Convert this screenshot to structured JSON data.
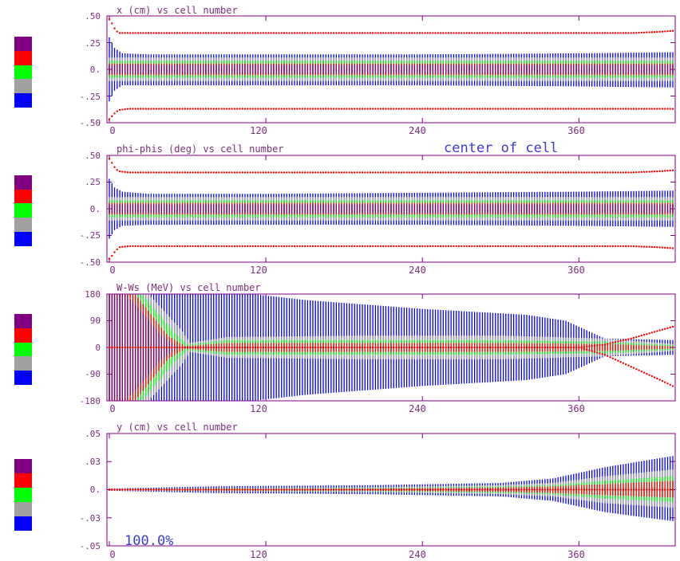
{
  "colors": {
    "frame": "#800080",
    "label": "#7a2f7a",
    "scale": [
      "#800080",
      "#ff0000",
      "#00ff00",
      "#a0a0a0",
      "#0000ff"
    ],
    "envelope": "#ff0000",
    "annotation": "#3b3bd0"
  },
  "annotations": {
    "center": "center of cell",
    "percent": "100.0%"
  },
  "chart_data": [
    {
      "type": "area",
      "title": "x (cm) vs cell number",
      "x_range": [
        0,
        432
      ],
      "x_ticks": [
        "0",
        "120",
        "240",
        "360"
      ],
      "x_tick_values": [
        0,
        120,
        240,
        360
      ],
      "y_range": [
        -0.5,
        0.5
      ],
      "y_ticks": [
        ".50",
        ".25",
        "0.",
        "-.25",
        "-.50"
      ],
      "y_tick_values": [
        0.5,
        0.25,
        0,
        -0.25,
        -0.5
      ],
      "series": [
        {
          "color_index": 4,
          "x": [
            0,
            4,
            10,
            30,
            120,
            240,
            360,
            432
          ],
          "upper": [
            0.3,
            0.2,
            0.15,
            0.14,
            0.14,
            0.14,
            0.15,
            0.16
          ],
          "lower": [
            -0.3,
            -0.2,
            -0.15,
            -0.15,
            -0.15,
            -0.15,
            -0.16,
            -0.17
          ]
        },
        {
          "color_index": 3,
          "x": [
            0,
            432
          ],
          "upper": [
            0.11,
            0.11
          ],
          "lower": [
            -0.11,
            -0.11
          ]
        },
        {
          "color_index": 2,
          "x": [
            0,
            432
          ],
          "upper": [
            0.08,
            0.08
          ],
          "lower": [
            -0.08,
            -0.08
          ]
        },
        {
          "color_index": 1,
          "x": [
            0,
            432
          ],
          "upper": [
            0.055,
            0.055
          ],
          "lower": [
            -0.055,
            -0.055
          ]
        },
        {
          "color_index": 0,
          "x": [
            0,
            432
          ],
          "upper": [
            0.04,
            0.04
          ],
          "lower": [
            -0.04,
            -0.04
          ]
        }
      ],
      "envelope": {
        "x": [
          0,
          2,
          5,
          8,
          15,
          400,
          420,
          432
        ],
        "upper": [
          0.47,
          0.43,
          0.36,
          0.34,
          0.34,
          0.34,
          0.35,
          0.36
        ],
        "lower": [
          -0.47,
          -0.44,
          -0.4,
          -0.38,
          -0.37,
          -0.37,
          -0.37,
          -0.37
        ]
      }
    },
    {
      "type": "area",
      "title": "phi-phis (deg) vs cell number",
      "x_range": [
        0,
        432
      ],
      "x_ticks": [
        "0",
        "120",
        "240",
        "360"
      ],
      "x_tick_values": [
        0,
        120,
        240,
        360
      ],
      "y_range": [
        -0.5,
        0.5
      ],
      "y_ticks": [
        ".50",
        ".25",
        "0.",
        "-.25",
        "-.50"
      ],
      "y_tick_values": [
        0.5,
        0.25,
        0,
        -0.25,
        -0.5
      ],
      "series": [
        {
          "color_index": 4,
          "x": [
            0,
            4,
            10,
            30,
            120,
            240,
            360,
            432
          ],
          "upper": [
            0.28,
            0.2,
            0.16,
            0.14,
            0.14,
            0.15,
            0.16,
            0.17
          ],
          "lower": [
            -0.28,
            -0.2,
            -0.16,
            -0.15,
            -0.15,
            -0.15,
            -0.16,
            -0.17
          ]
        },
        {
          "color_index": 3,
          "x": [
            0,
            432
          ],
          "upper": [
            0.11,
            0.11
          ],
          "lower": [
            -0.11,
            -0.11
          ]
        },
        {
          "color_index": 2,
          "x": [
            0,
            432
          ],
          "upper": [
            0.08,
            0.08
          ],
          "lower": [
            -0.08,
            -0.08
          ]
        },
        {
          "color_index": 1,
          "x": [
            0,
            432
          ],
          "upper": [
            0.055,
            0.055
          ],
          "lower": [
            -0.055,
            -0.055
          ]
        },
        {
          "color_index": 0,
          "x": [
            0,
            432
          ],
          "upper": [
            0.04,
            0.04
          ],
          "lower": [
            -0.04,
            -0.04
          ]
        }
      ],
      "envelope": {
        "x": [
          0,
          2,
          5,
          8,
          15,
          400,
          420,
          432
        ],
        "upper": [
          0.47,
          0.43,
          0.37,
          0.35,
          0.34,
          0.34,
          0.35,
          0.36
        ],
        "lower": [
          -0.47,
          -0.44,
          -0.39,
          -0.36,
          -0.35,
          -0.35,
          -0.36,
          -0.37
        ]
      }
    },
    {
      "type": "area",
      "title": "W-Ws (MeV) vs cell number",
      "x_range": [
        0,
        432
      ],
      "x_ticks": [
        "0",
        "120",
        "240",
        "360"
      ],
      "x_tick_values": [
        0,
        120,
        240,
        360
      ],
      "y_range": [
        -180,
        180
      ],
      "y_ticks": [
        "180",
        "90",
        "0",
        "-90",
        "-180"
      ],
      "y_tick_values": [
        180,
        90,
        0,
        -90,
        -180
      ],
      "series": [
        {
          "color_index": 4,
          "x": [
            0,
            60,
            110,
            150,
            240,
            320,
            350,
            380,
            432
          ],
          "upper": [
            180,
            180,
            180,
            160,
            130,
            110,
            90,
            30,
            25
          ],
          "lower": [
            -180,
            -180,
            -180,
            -160,
            -130,
            -110,
            -90,
            -30,
            -25
          ]
        },
        {
          "color_index": 3,
          "x": [
            0,
            30,
            55,
            62,
            90,
            200,
            300,
            380,
            432
          ],
          "upper": [
            180,
            180,
            60,
            15,
            35,
            40,
            40,
            30,
            12
          ],
          "lower": [
            -180,
            -180,
            -60,
            -15,
            -35,
            -40,
            -40,
            -30,
            -12
          ]
        },
        {
          "color_index": 2,
          "x": [
            0,
            25,
            50,
            60,
            90,
            200,
            300,
            380,
            432
          ],
          "upper": [
            180,
            180,
            50,
            10,
            25,
            25,
            25,
            20,
            8
          ],
          "lower": [
            -180,
            -180,
            -50,
            -10,
            -25,
            -25,
            -25,
            -20,
            -8
          ]
        },
        {
          "color_index": 1,
          "x": [
            0,
            20,
            45,
            58,
            90,
            200,
            300,
            380,
            432
          ],
          "upper": [
            180,
            180,
            40,
            5,
            15,
            15,
            15,
            12,
            4
          ],
          "lower": [
            -180,
            -180,
            -40,
            -5,
            -15,
            -15,
            -15,
            -12,
            -4
          ]
        },
        {
          "color_index": 0,
          "x": [
            0,
            12,
            25,
            40,
            52
          ],
          "upper": [
            180,
            180,
            120,
            40,
            3
          ],
          "lower": [
            -180,
            -180,
            -120,
            -40,
            -3
          ]
        }
      ],
      "envelope": {
        "x": [
          0,
          120,
          240,
          360,
          380,
          400,
          420,
          432
        ],
        "upper": [
          0,
          0,
          0,
          0,
          10,
          30,
          55,
          70
        ],
        "lower": [
          0,
          0,
          0,
          0,
          -25,
          -65,
          -105,
          -130
        ]
      }
    },
    {
      "type": "area",
      "title": "y (cm) vs cell number",
      "x_range": [
        0,
        432
      ],
      "x_ticks": [
        "0",
        "120",
        "240",
        "360"
      ],
      "x_tick_values": [
        0,
        120,
        240,
        360
      ],
      "y_range": [
        -0.05,
        0.05
      ],
      "y_ticks": [
        ".05",
        ".03",
        "0.",
        "-.03",
        "-.05"
      ],
      "y_tick_values": [
        0.05,
        0.025,
        0,
        -0.025,
        -0.05
      ],
      "series": [
        {
          "color_index": 4,
          "x": [
            0,
            40,
            80,
            200,
            300,
            340,
            380,
            432
          ],
          "upper": [
            0.001,
            0.002,
            0.003,
            0.004,
            0.006,
            0.01,
            0.02,
            0.03
          ],
          "lower": [
            -0.001,
            -0.002,
            -0.003,
            -0.004,
            -0.006,
            -0.01,
            -0.02,
            -0.028
          ]
        },
        {
          "color_index": 3,
          "x": [
            0,
            200,
            300,
            340,
            380,
            432
          ],
          "upper": [
            0.0008,
            0.002,
            0.004,
            0.006,
            0.012,
            0.018
          ],
          "lower": [
            -0.0008,
            -0.002,
            -0.004,
            -0.006,
            -0.012,
            -0.016
          ]
        },
        {
          "color_index": 2,
          "x": [
            0,
            200,
            300,
            340,
            380,
            432
          ],
          "upper": [
            0.0006,
            0.0015,
            0.003,
            0.004,
            0.008,
            0.012
          ],
          "lower": [
            -0.0006,
            -0.0015,
            -0.003,
            -0.004,
            -0.008,
            -0.011
          ]
        },
        {
          "color_index": 1,
          "x": [
            0,
            200,
            300,
            340,
            380,
            432
          ],
          "upper": [
            0.0004,
            0.001,
            0.002,
            0.003,
            0.005,
            0.008
          ],
          "lower": [
            -0.0004,
            -0.001,
            -0.002,
            -0.003,
            -0.005,
            -0.007
          ]
        },
        {
          "color_index": 0,
          "x": [
            0,
            432
          ],
          "upper": [
            0.0002,
            0.0005
          ],
          "lower": [
            -0.0002,
            -0.0005
          ]
        }
      ],
      "envelope": {
        "x": [
          0,
          432
        ],
        "upper": [
          0,
          0
        ],
        "lower": [
          0,
          0
        ]
      }
    }
  ]
}
